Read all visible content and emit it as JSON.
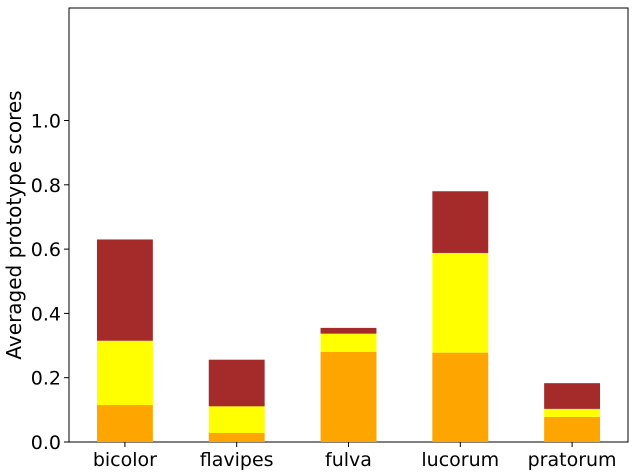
{
  "chart_data": {
    "type": "bar",
    "stacked": true,
    "categories": [
      "bicolor",
      "flavipes",
      "fulva",
      "lucorum",
      "pratorum"
    ],
    "series": [
      {
        "color": "#ffa500",
        "values": [
          0.115,
          0.028,
          0.28,
          0.278,
          0.078
        ]
      },
      {
        "color": "#ffff00",
        "values": [
          0.2,
          0.083,
          0.057,
          0.31,
          0.025
        ]
      },
      {
        "color": "#a52a2a",
        "values": [
          0.315,
          0.145,
          0.018,
          0.192,
          0.08
        ]
      }
    ],
    "xlabel": "",
    "ylabel": "Averaged prototype scores",
    "ylim": [
      0,
      1.35
    ],
    "yticks": [
      0.0,
      0.2,
      0.4,
      0.6,
      0.8,
      1.0
    ],
    "ytick_labels": [
      "0.0",
      "0.2",
      "0.4",
      "0.6",
      "0.8",
      "1.0"
    ],
    "grid": false,
    "legend": "none"
  }
}
